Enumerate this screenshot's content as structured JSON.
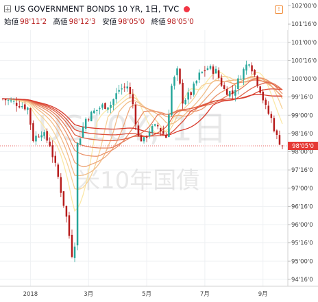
{
  "header": {
    "title": "US GOVERNMENT BONDS 10 YR, 1日, TVC",
    "ohlc": [
      {
        "label": "始値",
        "value": "98'11'2"
      },
      {
        "label": "高値",
        "value": "98'12'3"
      },
      {
        "label": "安値",
        "value": "98'05'0"
      },
      {
        "label": "終値",
        "value": "98'05'0"
      }
    ],
    "flag_glyph": "!"
  },
  "watermark": {
    "line1": "US10Y, 1日",
    "line2": "米10年国債"
  },
  "colors": {
    "up": "#26a69a",
    "down": "#b71c1c",
    "last_price": "#e53935",
    "ribbon_start": "#fbe8a6",
    "ribbon_end": "#d8392b"
  },
  "chart_data": {
    "type": "candlestick",
    "y_axis_labels": [
      "102'00'0",
      "101'16'0",
      "101'00'0",
      "100'16'0",
      "100'00'0",
      "99'16'0",
      "99'00'0",
      "98'16'0",
      "98'00'0",
      "97'16'0",
      "97'00'0",
      "96'16'0",
      "96'00'0",
      "95'16'0",
      "95'00'0",
      "94'16'0"
    ],
    "y_axis_values": [
      102.0,
      101.5,
      101.0,
      100.5,
      100.0,
      99.5,
      99.0,
      98.5,
      98.0,
      97.5,
      97.0,
      96.5,
      96.0,
      95.5,
      95.0,
      94.5
    ],
    "ylim": [
      94.31,
      102.16
    ],
    "x_axis_labels": [
      "2018",
      "3月",
      "5月",
      "7月",
      "9月"
    ],
    "x_axis_indices": [
      10,
      31,
      52,
      73,
      94
    ],
    "last_price_label": "98'05'0",
    "last_price": 98.16,
    "n_bars": 102,
    "anchors": [
      [
        0,
        99.45
      ],
      [
        6,
        99.3
      ],
      [
        9,
        99.2
      ],
      [
        11,
        98.35
      ],
      [
        14,
        98.55
      ],
      [
        17,
        98.2
      ],
      [
        20,
        97.3
      ],
      [
        23,
        96.2
      ],
      [
        25,
        95.2
      ],
      [
        26,
        95.5
      ],
      [
        27,
        98.2
      ],
      [
        30,
        98.9
      ],
      [
        33,
        99.1
      ],
      [
        36,
        99.25
      ],
      [
        39,
        99.3
      ],
      [
        42,
        99.7
      ],
      [
        45,
        99.8
      ],
      [
        47,
        99.3
      ],
      [
        49,
        98.4
      ],
      [
        51,
        98.3
      ],
      [
        53,
        98.6
      ],
      [
        56,
        98.7
      ],
      [
        59,
        98.4
      ],
      [
        61,
        99.8
      ],
      [
        63,
        100.2
      ],
      [
        65,
        99.4
      ],
      [
        68,
        99.6
      ],
      [
        71,
        100.1
      ],
      [
        74,
        100.3
      ],
      [
        77,
        100.2
      ],
      [
        80,
        99.7
      ],
      [
        83,
        99.6
      ],
      [
        86,
        100.1
      ],
      [
        89,
        100.5
      ],
      [
        91,
        100.1
      ],
      [
        93,
        99.7
      ],
      [
        95,
        99.2
      ],
      [
        97,
        98.9
      ],
      [
        99,
        98.4
      ],
      [
        101,
        98.16
      ]
    ],
    "ribbon_periods": [
      8,
      12,
      16,
      20,
      25,
      30,
      36,
      42,
      50
    ]
  }
}
